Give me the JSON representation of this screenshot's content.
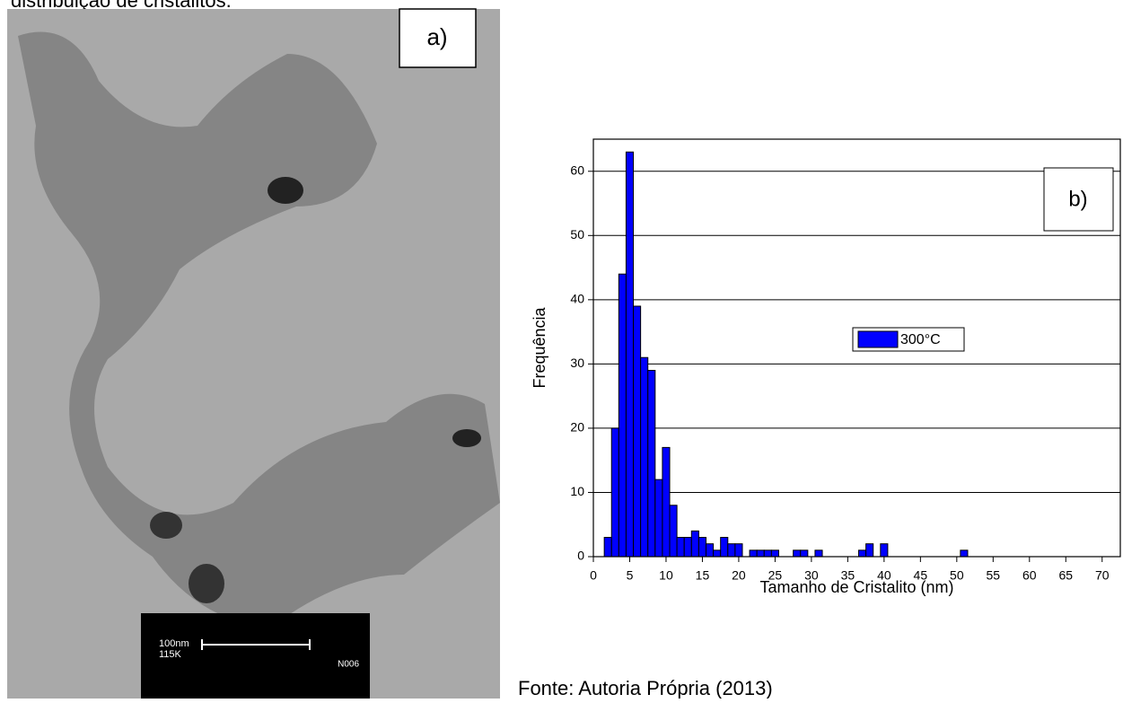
{
  "document": {
    "top_text": "distribuição de cristalitos.",
    "panel_a_label": "a)",
    "scale_bar_length": "100nm",
    "scale_bar_mag": "115K",
    "scale_bar_code": "N006",
    "source": "Fonte: Autoria Própria (2013)"
  },
  "chart_data": {
    "type": "histogram",
    "panel_label": "b)",
    "x_label": "Tamanho de Cristalito (nm)",
    "y_label": "Frequência",
    "bins": [
      1.5,
      2.5,
      3.5,
      4.5,
      5.5,
      6.5,
      7.5,
      8.5,
      9.5,
      10.5,
      11.5,
      12.5,
      13.5,
      14.5,
      15.5,
      16.5,
      17.5,
      18.5,
      19.5,
      20.5,
      21.5,
      22.5,
      23.5,
      24.5,
      25.5,
      26.5,
      27.5,
      28.5,
      29.5,
      30.5,
      31.5,
      32.5,
      33.5,
      34.5,
      35.5,
      36.5,
      37.5,
      38.5,
      39.5,
      40.5,
      41.5,
      42.5,
      43.5,
      44.5,
      45.5,
      46.5,
      47.5,
      48.5,
      49.5,
      50.5,
      51.5
    ],
    "series": [
      {
        "name": "300°C",
        "color": "#0000ff",
        "values": [
          3,
          20,
          44,
          63,
          39,
          31,
          29,
          12,
          17,
          8,
          3,
          3,
          4,
          3,
          2,
          1,
          3,
          2,
          2,
          0,
          1,
          1,
          1,
          1,
          0,
          0,
          1,
          1,
          0,
          1,
          0,
          0,
          0,
          0,
          0,
          1,
          2,
          0,
          2,
          0,
          0,
          0,
          0,
          0,
          0,
          0,
          0,
          0,
          0,
          1
        ]
      }
    ],
    "xlim": [
      0,
      72.5
    ],
    "xticks": [
      0,
      5,
      10,
      15,
      20,
      25,
      30,
      35,
      40,
      45,
      50,
      55,
      60,
      65,
      70
    ],
    "ylim": [
      0,
      65
    ],
    "yticks": [
      0,
      10,
      20,
      30,
      40,
      50,
      60
    ],
    "grid": true
  }
}
